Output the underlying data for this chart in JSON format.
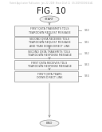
{
  "title": "FIG. 10",
  "header_text": "Patent Application Publication   Jan. 22, 2009  Sheet 10 of 11   US 2009/0019534 A1",
  "start_label": "START",
  "end_label": "END",
  "boxes": [
    {
      "text": "FIRST QSTA TRANSMITS TDLS\nTEARDOWN REQUEST MESSAGE",
      "step": "S30"
    },
    {
      "text": "SECOND QSTA RECEIVES TDLS\nTEARDOWN REQUEST MESSAGE\nAND TEAR DOWN DIRECT LINK",
      "step": "S31"
    },
    {
      "text": "SECOND QSTA TRANSMITS TDLS\nTEARDOWN RESPONSE MESSAGE",
      "step": "S32"
    },
    {
      "text": "FIRST QSTA RECEIVES TDLS\nTEARDOWN RESPONSE MESSAGE",
      "step": "S33"
    },
    {
      "text": "FIRST QSTA TEARS\nDOWN DIRECT LINK",
      "step": "S34"
    }
  ],
  "bg_color": "#ffffff",
  "box_edge_color": "#999999",
  "box_fill_color": "#f8f8f8",
  "text_color": "#555555",
  "arrow_color": "#999999",
  "step_color": "#777777",
  "header_color": "#bbbbbb",
  "title_color": "#222222",
  "oval_fill": "#f0f0f0"
}
